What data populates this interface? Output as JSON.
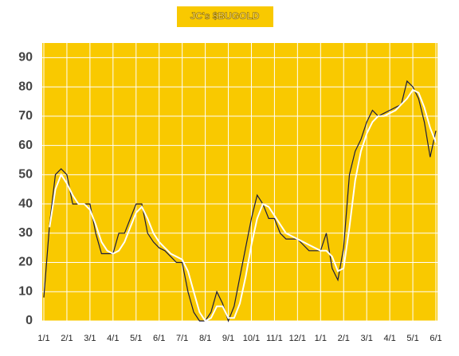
{
  "chart_data": {
    "type": "line",
    "title": "JC's $BUGOLD",
    "categories": [
      "1/1",
      null,
      null,
      null,
      "2/1",
      null,
      null,
      null,
      "3/1",
      null,
      null,
      null,
      "4/1",
      null,
      null,
      null,
      "5/1",
      null,
      null,
      null,
      "6/1",
      null,
      null,
      null,
      "7/1",
      null,
      null,
      null,
      "8/1",
      null,
      null,
      null,
      "9/1",
      null,
      null,
      null,
      "10/1",
      null,
      null,
      null,
      "11/1",
      null,
      null,
      null,
      "12/1",
      null,
      null,
      null,
      "1/1",
      null,
      null,
      null,
      "2/1",
      null,
      null,
      null,
      "3/1",
      null,
      null,
      null,
      "4/1",
      null,
      null,
      null,
      "5/1",
      null,
      null,
      null,
      "6/1"
    ],
    "series": [
      {
        "color": "#1a1a40",
        "values": [
          8,
          33,
          50,
          52,
          50,
          40,
          40,
          40,
          40,
          30,
          23,
          23,
          23,
          30,
          30,
          35,
          40,
          40,
          30,
          27,
          25,
          24,
          22,
          20,
          20,
          10,
          3,
          0,
          0,
          3,
          10,
          6,
          0,
          5,
          15,
          25,
          35,
          43,
          40,
          35,
          35,
          30,
          28,
          28,
          28,
          26,
          24,
          24,
          24,
          30,
          18,
          14,
          25,
          50,
          58,
          62,
          68,
          72,
          70,
          71,
          72,
          73,
          74,
          82,
          80,
          76,
          68,
          56,
          65
        ]
      },
      {
        "color": "#ffffff",
        "values": [
          null,
          32,
          45,
          50,
          47,
          43,
          40,
          40,
          38,
          33,
          27,
          24,
          23,
          24,
          27,
          32,
          37,
          39,
          35,
          30,
          27,
          25,
          23,
          22,
          21,
          17,
          10,
          3,
          0,
          1,
          5,
          5,
          1,
          1,
          6,
          15,
          26,
          35,
          40,
          39,
          36,
          33,
          30,
          29,
          28,
          27,
          26,
          25,
          24,
          24,
          22,
          17,
          18,
          32,
          48,
          58,
          64,
          68,
          70,
          70,
          71,
          72,
          74,
          76,
          79,
          78,
          73,
          66,
          61
        ]
      }
    ],
    "ylim": [
      0,
      95
    ],
    "yticks": [
      0,
      10,
      20,
      30,
      40,
      50,
      60,
      70,
      80,
      90
    ],
    "grid": true
  }
}
